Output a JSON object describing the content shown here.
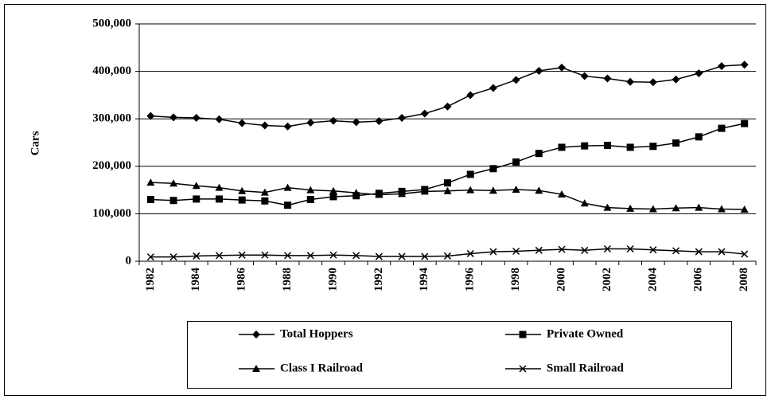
{
  "chart_data": {
    "type": "line",
    "y_label": "Cars",
    "categories": [
      "1982",
      null,
      "1984",
      null,
      "1986",
      null,
      "1988",
      null,
      "1990",
      null,
      "1992",
      null,
      "1994",
      null,
      "1996",
      null,
      "1998",
      null,
      "2000",
      null,
      "2002",
      null,
      "2004",
      null,
      "2006",
      null,
      "2008"
    ],
    "series": [
      {
        "name": "Total Hoppers",
        "color": "#000000",
        "marker": "diamond",
        "values": [
          306000,
          303000,
          302000,
          299000,
          291000,
          286000,
          284000,
          292000,
          296000,
          293000,
          295000,
          302000,
          311000,
          326000,
          350000,
          365000,
          382000,
          401000,
          408000,
          390000,
          385000,
          378000,
          377000,
          383000,
          396000,
          411000,
          414000
        ]
      },
      {
        "name": "Private Owned",
        "color": "#000000",
        "marker": "square",
        "values": [
          130000,
          128000,
          131000,
          131000,
          129000,
          127000,
          118000,
          130000,
          136000,
          138000,
          143000,
          147000,
          151000,
          165000,
          183000,
          195000,
          209000,
          227000,
          240000,
          243000,
          244000,
          240000,
          242000,
          249000,
          262000,
          280000,
          290000
        ]
      },
      {
        "name": "Class I Railroad",
        "color": "#000000",
        "marker": "triangle",
        "values": [
          166000,
          164000,
          159000,
          155000,
          148000,
          145000,
          155000,
          150000,
          148000,
          144000,
          140000,
          142000,
          147000,
          148000,
          150000,
          149000,
          151000,
          149000,
          141000,
          122000,
          113000,
          111000,
          110000,
          112000,
          113000,
          110000,
          109000
        ]
      },
      {
        "name": "Small Railroad",
        "color": "#000000",
        "marker": "x",
        "values": [
          9000,
          9000,
          11000,
          12000,
          13000,
          13000,
          12000,
          12000,
          13000,
          12000,
          10000,
          10000,
          10000,
          11000,
          16000,
          20000,
          21000,
          23000,
          25000,
          23000,
          26000,
          26000,
          24000,
          22000,
          20000,
          20000,
          15000
        ]
      }
    ],
    "ylim": [
      0,
      500000
    ],
    "yticks": [
      0,
      {
        "value": 100000,
        "label": "100,000"
      },
      {
        "value": 200000,
        "label": "200,000"
      },
      {
        "value": 300000,
        "label": "300,000"
      },
      {
        "value": 400000,
        "label": "400,000"
      },
      {
        "value": 500000,
        "label": "500,000"
      }
    ],
    "grid": true
  }
}
